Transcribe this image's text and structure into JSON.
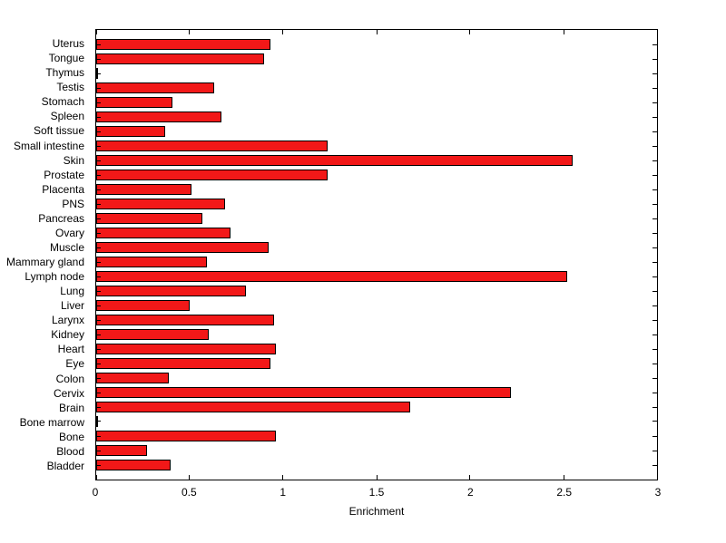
{
  "chart_data": {
    "type": "bar",
    "orientation": "horizontal",
    "title": "",
    "xlabel": "Enrichment",
    "ylabel": "",
    "xlim": [
      0,
      3
    ],
    "xticks": [
      "0",
      "0.5",
      "1",
      "1.5",
      "2",
      "2.5",
      "3"
    ],
    "xtick_values": [
      0,
      0.5,
      1,
      1.5,
      2,
      2.5,
      3
    ],
    "grid": false,
    "legend": "none",
    "bar_color": "#f21818",
    "bar_edge_color": "#000000",
    "categories": [
      "Uterus",
      "Tongue",
      "Thymus",
      "Testis",
      "Stomach",
      "Spleen",
      "Soft tissue",
      "Small intestine",
      "Skin",
      "Prostate",
      "Placenta",
      "PNS",
      "Pancreas",
      "Ovary",
      "Muscle",
      "Mammary gland",
      "Lymph node",
      "Lung",
      "Liver",
      "Larynx",
      "Kidney",
      "Heart",
      "Eye",
      "Colon",
      "Cervix",
      "Brain",
      "Bone marrow",
      "Bone",
      "Blood",
      "Bladder"
    ],
    "values": [
      0.93,
      0.9,
      0.01,
      0.63,
      0.41,
      0.67,
      0.37,
      1.24,
      2.55,
      1.24,
      0.51,
      0.69,
      0.57,
      0.72,
      0.92,
      0.59,
      2.52,
      0.8,
      0.5,
      0.95,
      0.6,
      0.96,
      0.93,
      0.39,
      2.22,
      1.68,
      0.01,
      0.96,
      0.27,
      0.4
    ]
  }
}
